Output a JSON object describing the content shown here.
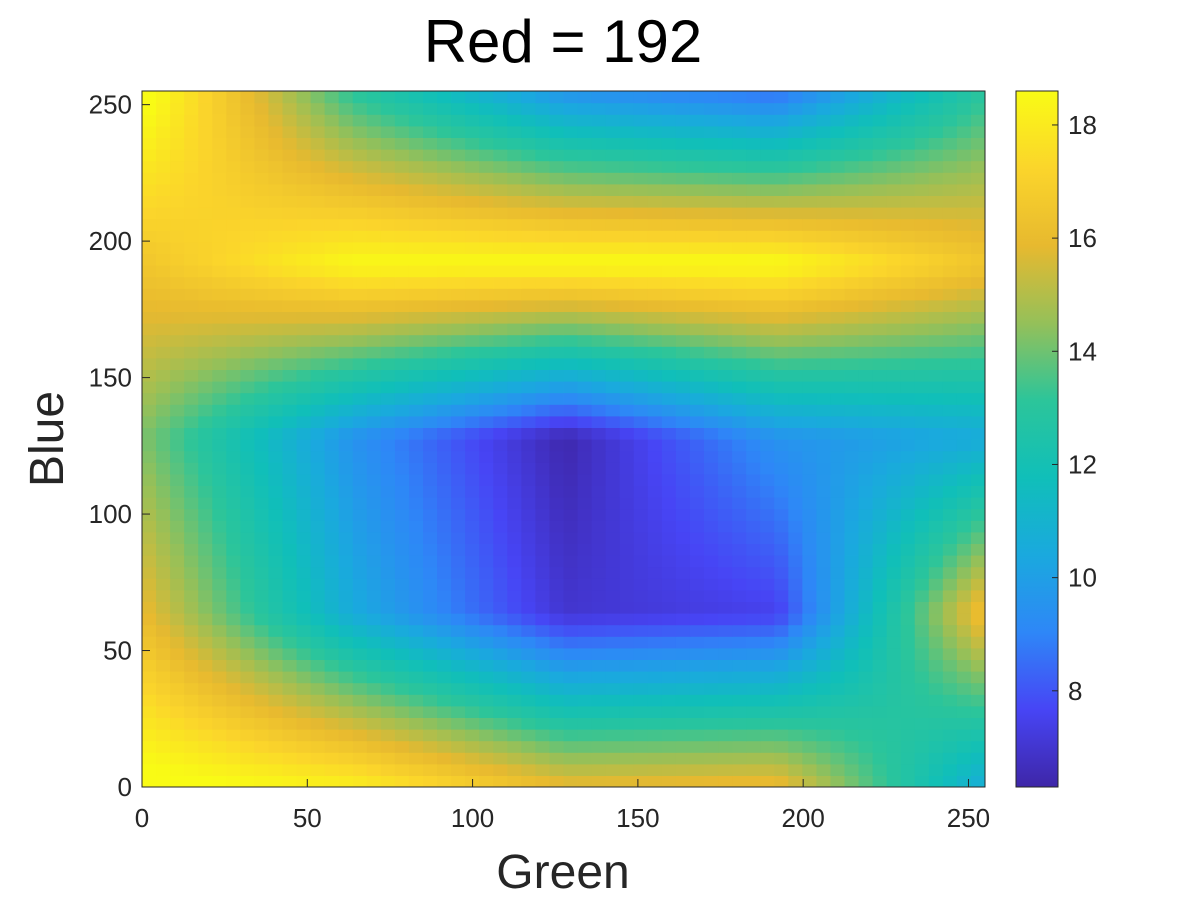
{
  "chart_data": {
    "type": "heatmap",
    "title": "Red = 192",
    "xlabel": "Green",
    "ylabel": "Blue",
    "xlim": [
      0,
      255
    ],
    "ylim": [
      0,
      255
    ],
    "grid": false,
    "x_ticks": [
      0,
      50,
      100,
      150,
      200,
      250
    ],
    "y_ticks": [
      0,
      50,
      100,
      150,
      200,
      250
    ],
    "grid_x": [
      0,
      64,
      128,
      192,
      255
    ],
    "grid_y": [
      0,
      64,
      128,
      192,
      255
    ],
    "z": [
      [
        19.0,
        18.2,
        16.0,
        16.2,
        10.5
      ],
      [
        16.0,
        10.5,
        7.0,
        7.5,
        16.5
      ],
      [
        14.2,
        9.5,
        6.4,
        9.5,
        10.5
      ],
      [
        16.5,
        18.5,
        18.6,
        18.6,
        16.5
      ],
      [
        19.0,
        13.0,
        9.5,
        8.5,
        13.0
      ]
    ],
    "colorbar": {
      "range": [
        6.3,
        18.6
      ],
      "ticks": [
        8,
        10,
        12,
        14,
        16,
        18
      ],
      "colormap": "parula",
      "colormap_stops": [
        "#3e26a8",
        "#4745f5",
        "#2e87f7",
        "#1aa9de",
        "#10bfb9",
        "#2cc59a",
        "#95c059",
        "#e7b92f",
        "#fbd52b",
        "#f9fb15"
      ]
    },
    "axis_color": "#262626"
  }
}
